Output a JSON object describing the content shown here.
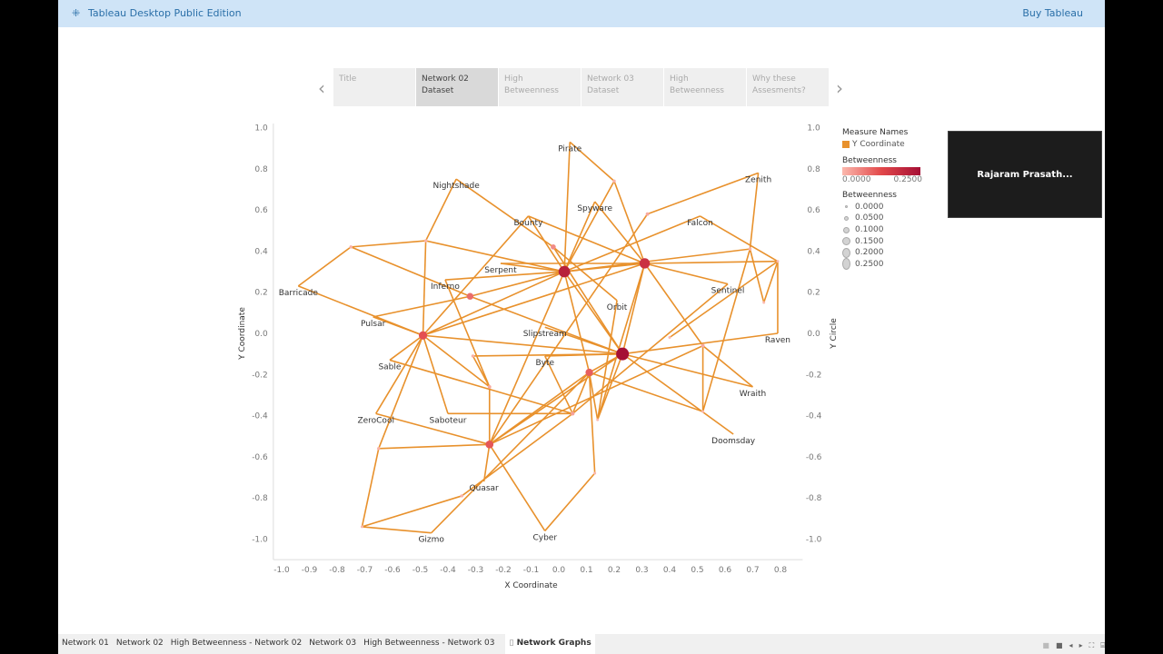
{
  "topbar": {
    "title": "Tableau Desktop Public Edition",
    "buy": "Buy Tableau"
  },
  "story": {
    "points": [
      {
        "l1": "Title",
        "l2": ""
      },
      {
        "l1": "Network 02",
        "l2": "Dataset",
        "active": true
      },
      {
        "l1": "High",
        "l2": "Betweenness"
      },
      {
        "l1": "Network 03",
        "l2": "Dataset"
      },
      {
        "l1": "High",
        "l2": "Betweenness"
      },
      {
        "l1": "Why these",
        "l2": "Assesments?"
      }
    ],
    "prev": "‹",
    "next": "›"
  },
  "legend": {
    "measure_title": "Measure Names",
    "measure_item": "Y Coordinate",
    "measure_color": "#e8912c",
    "color_title": "Betweenness",
    "color_min": "0.0000",
    "color_max": "0.2500",
    "size_title": "Betweenness",
    "sizes": [
      "0.0000",
      "0.0500",
      "0.1000",
      "0.1500",
      "0.2000",
      "0.2500"
    ]
  },
  "video": {
    "name": "Rajaram  Prasath..."
  },
  "tabs": [
    "Network 01",
    "Network 02",
    "High Betweenness - Network 02",
    "Network 03",
    "High Betweenness - Network 03"
  ],
  "active_tab": "Network Graphs",
  "chart_data": {
    "type": "network",
    "xlabel": "X Coordinate",
    "ylabel": "Y Coordinate",
    "y2label": "Y Circle",
    "xlim": [
      -1.0,
      0.85
    ],
    "ylim": [
      -1.1,
      1.05
    ],
    "xticks": [
      "-1.0",
      "-0.9",
      "-0.8",
      "-0.7",
      "-0.6",
      "-0.5",
      "-0.4",
      "-0.3",
      "-0.2",
      "-0.1",
      "0.0",
      "0.1",
      "0.2",
      "0.3",
      "0.4",
      "0.5",
      "0.6",
      "0.7",
      "0.8"
    ],
    "yticks": [
      "1.0",
      "0.8",
      "0.6",
      "0.4",
      "0.2",
      "0.0",
      "-0.2",
      "-0.4",
      "-0.6",
      "-0.8",
      "-1.0"
    ],
    "edge_color": "#e8912c",
    "color_low": "#fbb8ad",
    "color_high": "#a50f35",
    "nodes": {
      "Pirate": [
        0.04,
        0.93,
        null,
        "Pirate"
      ],
      "P2": [
        0.2,
        0.74,
        0.01
      ],
      "Spyware": [
        0.13,
        0.64,
        null,
        "Spyware"
      ],
      "Nightshade": [
        -0.37,
        0.75,
        null,
        "Nightshade"
      ],
      "Bounty": [
        -0.11,
        0.57,
        null,
        "Bounty"
      ],
      "BP": [
        -0.02,
        0.42,
        0.06
      ],
      "N1": [
        -0.48,
        0.45,
        0.01
      ],
      "N2": [
        -0.75,
        0.42,
        0.01
      ],
      "Barricade": [
        -0.94,
        0.23,
        null,
        "Barricade"
      ],
      "Pulsar": [
        -0.67,
        0.08,
        null,
        "Pulsar"
      ],
      "IR": [
        -0.32,
        0.18,
        0.1
      ],
      "Inferno": [
        -0.41,
        0.26,
        null,
        "Inferno"
      ],
      "Serpent": [
        -0.21,
        0.34,
        null,
        "Serpent"
      ],
      "HA": [
        0.02,
        0.3,
        0.22
      ],
      "HB": [
        0.31,
        0.34,
        0.19
      ],
      "HC": [
        0.23,
        -0.1,
        0.25
      ],
      "D": [
        -0.49,
        -0.01,
        0.14
      ],
      "E": [
        0.11,
        -0.19,
        0.12
      ],
      "F": [
        -0.25,
        -0.54,
        0.13
      ],
      "Orbit": [
        0.21,
        0.16,
        null,
        "Orbit"
      ],
      "Zenith": [
        0.72,
        0.78,
        null,
        "Zenith"
      ],
      "Falcon": [
        0.51,
        0.57,
        null,
        "Falcon"
      ],
      "Z2": [
        0.69,
        0.41,
        0.01
      ],
      "Z3": [
        0.79,
        0.35,
        0.0
      ],
      "Z4": [
        0.74,
        0.15,
        0.0
      ],
      "Sentinel": [
        0.61,
        0.24,
        null,
        "Sentinel"
      ],
      "Raven": [
        0.79,
        0.0,
        null,
        "Raven"
      ],
      "V1": [
        0.52,
        -0.06,
        0.02
      ],
      "V2": [
        0.4,
        -0.02,
        0.0
      ],
      "Wraith": [
        0.7,
        -0.26,
        null,
        "Wraith"
      ],
      "V3": [
        0.52,
        -0.38,
        0.0
      ],
      "Doomsday": [
        0.63,
        -0.49,
        null,
        "Doomsday"
      ],
      "Slipstream": [
        -0.05,
        0.03,
        null,
        "Slipstream"
      ],
      "Byte": [
        -0.05,
        -0.11,
        null,
        "Byte"
      ],
      "V4": [
        0.05,
        -0.39,
        0.03
      ],
      "V5": [
        0.14,
        -0.42,
        0.0
      ],
      "V6": [
        0.13,
        -0.68,
        0.0
      ],
      "Cyber": [
        -0.05,
        -0.96,
        null,
        "Cyber"
      ],
      "Sable": [
        -0.61,
        -0.13,
        null,
        "Sable"
      ],
      "ZeroCool": [
        -0.66,
        -0.39,
        null,
        "ZeroCool"
      ],
      "Saboteur": [
        -0.4,
        -0.39,
        null,
        "Saboteur"
      ],
      "V7": [
        -0.31,
        -0.11,
        0.01
      ],
      "V8": [
        -0.25,
        -0.26,
        0.02
      ],
      "Z5": [
        -0.65,
        -0.56,
        0.01
      ],
      "Quasar": [
        -0.27,
        -0.72,
        null,
        "Quasar"
      ],
      "Q2": [
        -0.35,
        -0.79,
        0.01
      ],
      "Gizmo": [
        -0.46,
        -0.97,
        null,
        "Gizmo"
      ],
      "G1": [
        -0.71,
        -0.94,
        0.0
      ],
      "V9": [
        0.32,
        0.58,
        0.02
      ]
    },
    "edges": [
      [
        "Pirate",
        "P2"
      ],
      [
        "Pirate",
        "HA"
      ],
      [
        "P2",
        "HB"
      ],
      [
        "P2",
        "HA"
      ],
      [
        "Spyware",
        "HA"
      ],
      [
        "Spyware",
        "HB"
      ],
      [
        "Nightshade",
        "N1"
      ],
      [
        "Nightshade",
        "BP"
      ],
      [
        "Bounty",
        "D"
      ],
      [
        "Bounty",
        "HB"
      ],
      [
        "N1",
        "N2"
      ],
      [
        "N1",
        "D"
      ],
      [
        "N1",
        "HA"
      ],
      [
        "N2",
        "Barricade"
      ],
      [
        "N2",
        "IR"
      ],
      [
        "Barricade",
        "D"
      ],
      [
        "Pulsar",
        "D"
      ],
      [
        "Pulsar",
        "IR"
      ],
      [
        "Serpent",
        "HA"
      ],
      [
        "Inferno",
        "HA"
      ],
      [
        "Inferno",
        "V8"
      ],
      [
        "D",
        "HA"
      ],
      [
        "D",
        "HB"
      ],
      [
        "D",
        "HC"
      ],
      [
        "D",
        "ZeroCool"
      ],
      [
        "D",
        "Z5"
      ],
      [
        "D",
        "Saboteur"
      ],
      [
        "D",
        "V8"
      ],
      [
        "IR",
        "HC"
      ],
      [
        "IR",
        "HA"
      ],
      [
        "HA",
        "HB"
      ],
      [
        "HA",
        "HC"
      ],
      [
        "HA",
        "E"
      ],
      [
        "HA",
        "Z2"
      ],
      [
        "HA",
        "F"
      ],
      [
        "HA",
        "Falcon"
      ],
      [
        "V9",
        "Zenith"
      ],
      [
        "V9",
        "F"
      ],
      [
        "HB",
        "Z3"
      ],
      [
        "HB",
        "Sentinel"
      ],
      [
        "HB",
        "HC"
      ],
      [
        "HB",
        "V5"
      ],
      [
        "HB",
        "V1"
      ],
      [
        "Falcon",
        "Z3"
      ],
      [
        "Zenith",
        "Z2"
      ],
      [
        "Z2",
        "Z4"
      ],
      [
        "Z3",
        "Z4"
      ],
      [
        "Z3",
        "Raven"
      ],
      [
        "Raven",
        "HC"
      ],
      [
        "Z2",
        "V3"
      ],
      [
        "Z3",
        "V2"
      ],
      [
        "Sentinel",
        "V4"
      ],
      [
        "HC",
        "Wraith"
      ],
      [
        "HC",
        "Doomsday"
      ],
      [
        "HC",
        "E"
      ],
      [
        "HC",
        "Slipstream"
      ],
      [
        "HC",
        "F"
      ],
      [
        "HC",
        "V5"
      ],
      [
        "V1",
        "Wraith"
      ],
      [
        "V1",
        "V3"
      ],
      [
        "V1",
        "F"
      ],
      [
        "E",
        "F"
      ],
      [
        "E",
        "V4"
      ],
      [
        "E",
        "V5"
      ],
      [
        "E",
        "V3"
      ],
      [
        "E",
        "V6"
      ],
      [
        "Byte",
        "V4"
      ],
      [
        "Byte",
        "HC"
      ],
      [
        "F",
        "Cyber"
      ],
      [
        "V6",
        "Cyber"
      ],
      [
        "Sable",
        "V4"
      ],
      [
        "Sable",
        "D"
      ],
      [
        "ZeroCool",
        "F"
      ],
      [
        "Z5",
        "F"
      ],
      [
        "Z5",
        "G1"
      ],
      [
        "G1",
        "Gizmo"
      ],
      [
        "G1",
        "Q2"
      ],
      [
        "Gizmo",
        "E"
      ],
      [
        "Q2",
        "V4"
      ],
      [
        "Quasar",
        "F"
      ],
      [
        "Saboteur",
        "V4"
      ],
      [
        "V7",
        "V8"
      ],
      [
        "V7",
        "HC"
      ],
      [
        "V8",
        "F"
      ],
      [
        "BP",
        "Orbit"
      ],
      [
        "Orbit",
        "V5"
      ],
      [
        "BP",
        "HC"
      ],
      [
        "Bounty",
        "HA"
      ],
      [
        "Serpent",
        "HB"
      ]
    ]
  }
}
